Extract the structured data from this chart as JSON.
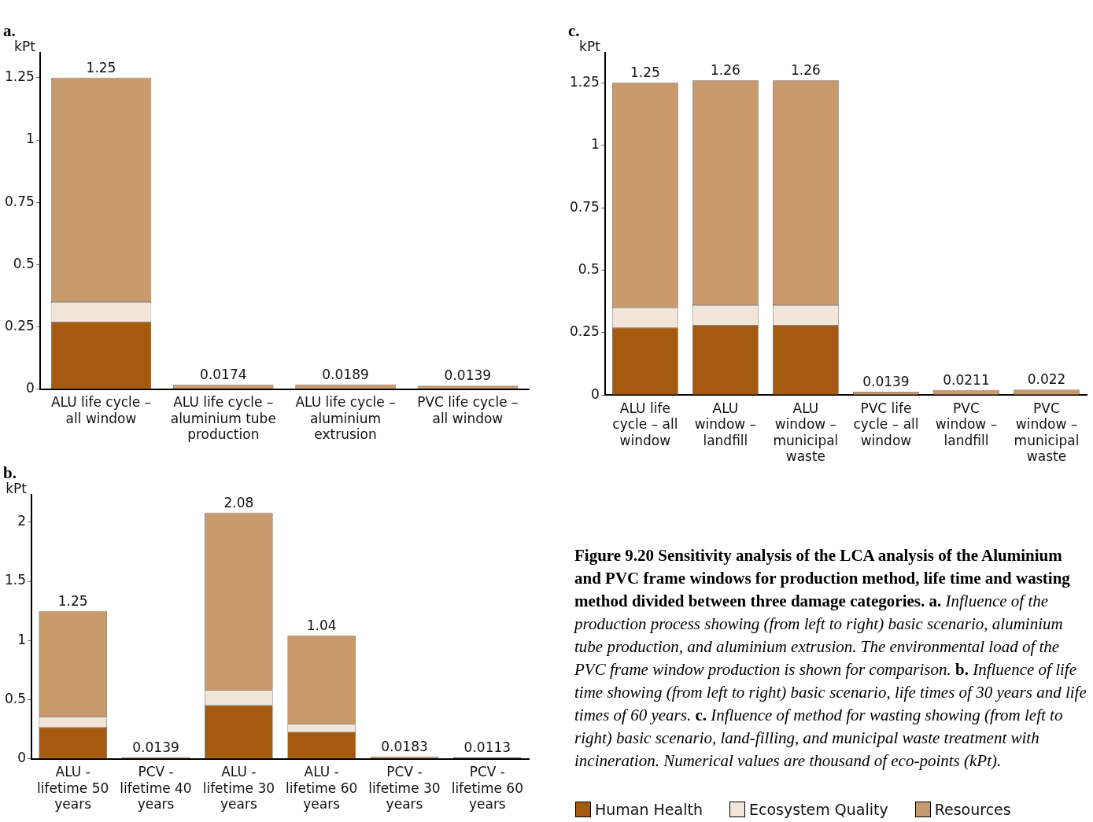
{
  "chart_data": [
    {
      "type": "bar",
      "title": "a.",
      "ylabel": "kPt",
      "stacked": true,
      "grid": false,
      "legend": "bottom right",
      "categories": [
        "ALU life cycle – all window",
        "ALU life cycle – aluminium tube production",
        "ALU life cycle – aluminium extrusion",
        "PVC life cycle – all window"
      ],
      "series": [
        {
          "name": "Human Health",
          "color": "#a65a10",
          "values": [
            0.27,
            null,
            null,
            null
          ]
        },
        {
          "name": "Ecosystem Quality",
          "color": "#f2e6da",
          "values": [
            0.08,
            null,
            null,
            null
          ]
        },
        {
          "name": "Resources",
          "color": "#c99a6c",
          "values": [
            0.9,
            0.0174,
            0.0189,
            0.0139
          ]
        }
      ],
      "totals": [
        "1.25",
        "0.0174",
        "0.0189",
        "0.0139"
      ],
      "ylim": [
        0,
        1.35
      ],
      "yticks": [
        0,
        0.25,
        0.5,
        0.75,
        1,
        1.25
      ]
    },
    {
      "type": "bar",
      "title": "b.",
      "ylabel": "kPt",
      "stacked": true,
      "grid": false,
      "categories": [
        "ALU - lifetime 50 years",
        "PCV - lifetime 40 years",
        "ALU - lifetime 30 years",
        "ALU - lifetime 60 years",
        "PCV - lifetime 30 years",
        "PCV - lifetime 60 years"
      ],
      "series": [
        {
          "color": "#a65a10",
          "values": [
            0.265,
            null,
            0.45,
            0.225,
            null,
            null
          ]
        },
        {
          "color": "#f2e6da",
          "values": [
            0.09,
            null,
            0.13,
            0.07,
            null,
            null
          ]
        },
        {
          "color": "#c99a6c",
          "values": [
            0.895,
            0.0139,
            1.5,
            0.745,
            0.0183,
            0.0113
          ]
        }
      ],
      "totals": [
        "1.25",
        "0.0139",
        "2.08",
        "1.04",
        "0.0183",
        "0.0113"
      ],
      "ylim": [
        0,
        2.23
      ],
      "yticks": [
        0,
        0.5,
        1,
        1.5,
        2
      ]
    },
    {
      "type": "bar",
      "title": "c.",
      "ylabel": "kPt",
      "stacked": true,
      "grid": false,
      "categories": [
        "ALU life cycle – all window",
        "ALU window – landfill",
        "ALU window – municipal waste",
        "PVC life cycle – all window",
        "PVC window – landfill",
        "PVC window – municipal waste"
      ],
      "series": [
        {
          "color": "#a65a10",
          "values": [
            0.27,
            0.28,
            0.28,
            null,
            null,
            null
          ]
        },
        {
          "color": "#f2e6da",
          "values": [
            0.08,
            0.08,
            0.08,
            null,
            null,
            null
          ]
        },
        {
          "color": "#c99a6c",
          "values": [
            0.9,
            0.9,
            0.9,
            0.0139,
            0.0211,
            0.022
          ]
        }
      ],
      "totals": [
        "1.25",
        "1.26",
        "1.26",
        "0.0139",
        "0.0211",
        "0.022"
      ],
      "ylim": [
        0,
        1.37
      ],
      "yticks": [
        0,
        0.25,
        0.5,
        0.75,
        1,
        1.25
      ],
      "annotations": [
        "Figure 9.20 Sensitivity analysis of the LCA analysis of the Aluminium and PVC frame windows for production method, life time and wasting method divided between three damage categories. a.",
        "Influence of the production process showing (from left to right) basic scenario, aluminium tube production, and aluminium extrusion. The environmental load of the PVC frame window production is shown for comparison.",
        "b.",
        "Influence of life time showing (from left to right) basic scenario, life times of 30 years and life times of 60 years.",
        "c.",
        "Influence of method for wasting showing (from left to right) basic scenario, land-filling, and municipal waste treatment with incineration. Numerical values are thousand of eco-points (kPt)."
      ]
    }
  ]
}
